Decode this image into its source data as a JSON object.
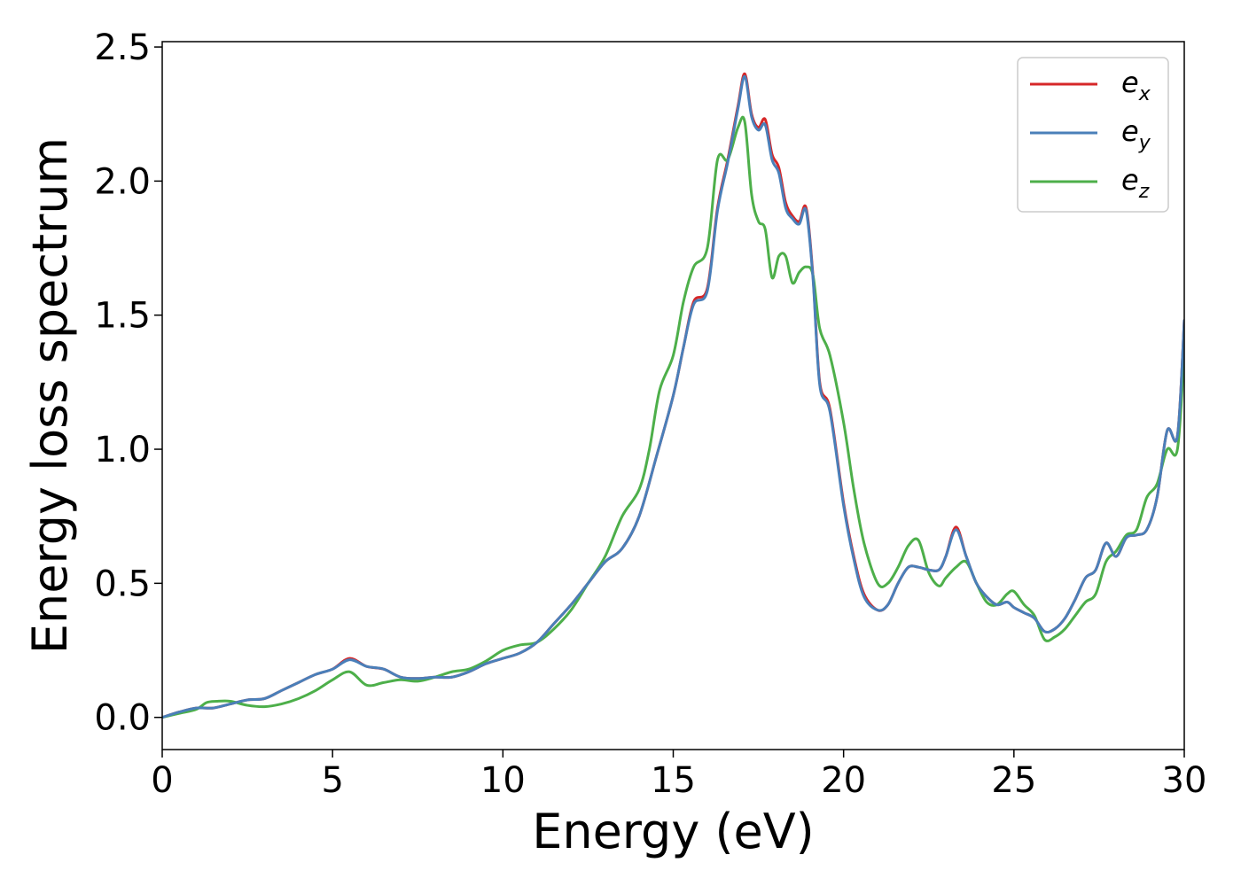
{
  "chart_data": {
    "type": "line",
    "title": "",
    "xlabel": "Energy (eV)",
    "ylabel": "Energy loss spectrum",
    "xlim": [
      0,
      30
    ],
    "ylim": [
      -0.12,
      2.52
    ],
    "xticks": [
      "0",
      "5",
      "10",
      "15",
      "20",
      "25",
      "30"
    ],
    "yticks": [
      "0.0",
      "0.5",
      "1.0",
      "1.5",
      "2.0",
      "2.5"
    ],
    "grid": false,
    "legend_position": "top-right",
    "series": [
      {
        "name": "e_x",
        "label_base": "e",
        "label_sub": "x",
        "color": "#d62728",
        "x": [
          0,
          0.5,
          1,
          1.5,
          2,
          2.5,
          3,
          3.5,
          4,
          4.5,
          5,
          5.5,
          6,
          6.5,
          7,
          7.5,
          8,
          8.5,
          9,
          9.5,
          10,
          10.5,
          11,
          11.5,
          12,
          12.5,
          13,
          13.5,
          14,
          14.5,
          15,
          15.3,
          15.6,
          16,
          16.3,
          16.6,
          16.9,
          17.1,
          17.3,
          17.5,
          17.7,
          17.9,
          18.1,
          18.3,
          18.5,
          18.7,
          18.9,
          19.1,
          19.3,
          19.6,
          20,
          20.3,
          20.6,
          21,
          21.3,
          21.6,
          21.9,
          22.2,
          22.5,
          22.8,
          23,
          23.3,
          23.6,
          23.9,
          24.2,
          24.5,
          24.8,
          25,
          25.3,
          25.6,
          25.9,
          26.2,
          26.5,
          26.8,
          27.1,
          27.4,
          27.7,
          28,
          28.3,
          28.6,
          28.9,
          29.2,
          29.5,
          29.8,
          30
        ],
        "values": [
          0,
          0.02,
          0.035,
          0.035,
          0.05,
          0.065,
          0.07,
          0.1,
          0.13,
          0.16,
          0.18,
          0.22,
          0.19,
          0.18,
          0.15,
          0.145,
          0.15,
          0.15,
          0.17,
          0.2,
          0.22,
          0.24,
          0.28,
          0.35,
          0.42,
          0.5,
          0.58,
          0.63,
          0.75,
          0.97,
          1.2,
          1.38,
          1.55,
          1.6,
          1.9,
          2.08,
          2.28,
          2.4,
          2.25,
          2.2,
          2.23,
          2.1,
          2.05,
          1.92,
          1.87,
          1.85,
          1.9,
          1.65,
          1.25,
          1.15,
          0.8,
          0.6,
          0.46,
          0.4,
          0.42,
          0.5,
          0.56,
          0.56,
          0.55,
          0.55,
          0.6,
          0.71,
          0.6,
          0.5,
          0.45,
          0.42,
          0.43,
          0.41,
          0.39,
          0.37,
          0.32,
          0.33,
          0.37,
          0.44,
          0.52,
          0.55,
          0.65,
          0.6,
          0.67,
          0.68,
          0.7,
          0.82,
          1.07,
          1.05,
          1.48
        ]
      },
      {
        "name": "e_y",
        "label_base": "e",
        "label_sub": "y",
        "color": "#4a7fb9",
        "x": [
          0,
          0.5,
          1,
          1.5,
          2,
          2.5,
          3,
          3.5,
          4,
          4.5,
          5,
          5.5,
          6,
          6.5,
          7,
          7.5,
          8,
          8.5,
          9,
          9.5,
          10,
          10.5,
          11,
          11.5,
          12,
          12.5,
          13,
          13.5,
          14,
          14.5,
          15,
          15.3,
          15.6,
          16,
          16.3,
          16.6,
          16.9,
          17.1,
          17.3,
          17.5,
          17.7,
          17.9,
          18.1,
          18.3,
          18.5,
          18.7,
          18.9,
          19.1,
          19.3,
          19.6,
          20,
          20.3,
          20.6,
          21,
          21.3,
          21.6,
          21.9,
          22.2,
          22.5,
          22.8,
          23,
          23.3,
          23.6,
          23.9,
          24.2,
          24.5,
          24.8,
          25,
          25.3,
          25.6,
          25.9,
          26.2,
          26.5,
          26.8,
          27.1,
          27.4,
          27.7,
          28,
          28.3,
          28.6,
          28.9,
          29.2,
          29.5,
          29.8,
          30
        ],
        "values": [
          0,
          0.02,
          0.035,
          0.035,
          0.05,
          0.065,
          0.07,
          0.1,
          0.13,
          0.16,
          0.18,
          0.215,
          0.19,
          0.18,
          0.15,
          0.145,
          0.15,
          0.15,
          0.17,
          0.2,
          0.22,
          0.24,
          0.28,
          0.35,
          0.42,
          0.5,
          0.58,
          0.63,
          0.75,
          0.97,
          1.2,
          1.38,
          1.54,
          1.59,
          1.89,
          2.07,
          2.27,
          2.39,
          2.24,
          2.19,
          2.21,
          2.08,
          2.03,
          1.9,
          1.86,
          1.84,
          1.89,
          1.64,
          1.24,
          1.14,
          0.79,
          0.59,
          0.45,
          0.4,
          0.42,
          0.5,
          0.56,
          0.56,
          0.55,
          0.55,
          0.6,
          0.7,
          0.6,
          0.5,
          0.45,
          0.42,
          0.43,
          0.41,
          0.39,
          0.37,
          0.32,
          0.33,
          0.37,
          0.44,
          0.52,
          0.55,
          0.65,
          0.6,
          0.67,
          0.68,
          0.7,
          0.82,
          1.07,
          1.05,
          1.48
        ]
      },
      {
        "name": "e_z",
        "label_base": "e",
        "label_sub": "z",
        "color": "#4daf4a",
        "x": [
          0,
          0.5,
          1,
          1.3,
          1.6,
          2,
          2.5,
          3,
          3.5,
          4,
          4.5,
          5,
          5.5,
          6,
          6.5,
          7,
          7.5,
          8,
          8.5,
          9,
          9.5,
          10,
          10.5,
          11,
          11.5,
          12,
          12.5,
          13,
          13.5,
          14,
          14.3,
          14.6,
          15,
          15.3,
          15.6,
          16,
          16.3,
          16.6,
          16.9,
          17.1,
          17.3,
          17.5,
          17.7,
          17.9,
          18.1,
          18.3,
          18.5,
          18.7,
          18.9,
          19.1,
          19.3,
          19.6,
          20,
          20.3,
          20.6,
          21,
          21.3,
          21.6,
          21.9,
          22.2,
          22.5,
          22.8,
          23,
          23.3,
          23.6,
          23.9,
          24.2,
          24.5,
          24.8,
          25,
          25.3,
          25.6,
          25.9,
          26.2,
          26.5,
          26.8,
          27.1,
          27.4,
          27.7,
          28,
          28.3,
          28.6,
          28.9,
          29.2,
          29.5,
          29.8,
          30
        ],
        "values": [
          0,
          0.015,
          0.03,
          0.055,
          0.06,
          0.06,
          0.045,
          0.04,
          0.05,
          0.07,
          0.1,
          0.14,
          0.17,
          0.12,
          0.13,
          0.14,
          0.135,
          0.15,
          0.17,
          0.18,
          0.21,
          0.25,
          0.27,
          0.28,
          0.33,
          0.4,
          0.5,
          0.6,
          0.75,
          0.85,
          1.0,
          1.22,
          1.35,
          1.55,
          1.68,
          1.75,
          2.08,
          2.08,
          2.2,
          2.22,
          1.95,
          1.85,
          1.82,
          1.64,
          1.72,
          1.72,
          1.62,
          1.66,
          1.68,
          1.65,
          1.45,
          1.35,
          1.1,
          0.85,
          0.65,
          0.5,
          0.5,
          0.56,
          0.64,
          0.66,
          0.54,
          0.49,
          0.52,
          0.56,
          0.58,
          0.5,
          0.43,
          0.42,
          0.46,
          0.47,
          0.42,
          0.38,
          0.29,
          0.3,
          0.33,
          0.38,
          0.43,
          0.46,
          0.58,
          0.62,
          0.68,
          0.7,
          0.82,
          0.87,
          1.0,
          1.0,
          1.37
        ]
      }
    ]
  }
}
